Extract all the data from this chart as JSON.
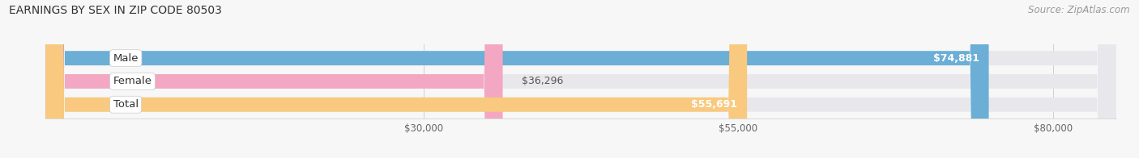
{
  "title": "EARNINGS BY SEX IN ZIP CODE 80503",
  "source": "Source: ZipAtlas.com",
  "categories": [
    "Male",
    "Female",
    "Total"
  ],
  "values": [
    74881,
    36296,
    55691
  ],
  "bar_colors": [
    "#6baed6",
    "#f4a7c3",
    "#f8c97e"
  ],
  "bar_labels": [
    "$74,881",
    "$36,296",
    "$55,691"
  ],
  "bar_bg_color": "#e8e8ec",
  "xmin": 0,
  "xmax": 85000,
  "xticks": [
    30000,
    55000,
    80000
  ],
  "xtick_labels": [
    "$30,000",
    "$55,000",
    "$80,000"
  ],
  "fig_bg": "#f7f7f7",
  "title_fontsize": 10,
  "source_fontsize": 8.5,
  "bar_height": 0.62,
  "label_fontsize": 9,
  "category_fontsize": 9.5,
  "grid_color": "#d0d0d0"
}
